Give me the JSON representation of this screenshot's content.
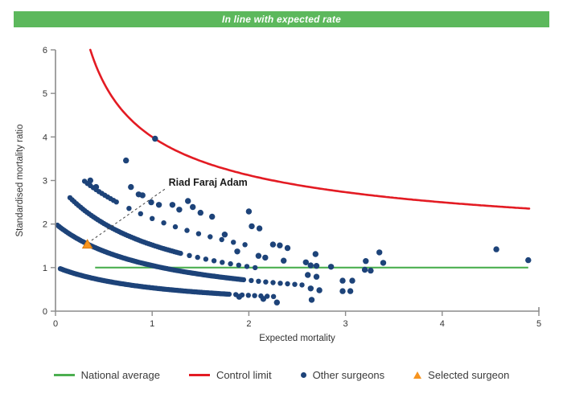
{
  "banner": {
    "text": "In line with expected rate",
    "bg_color": "#5cb85c",
    "text_color": "#ffffff"
  },
  "chart_data": {
    "type": "scatter",
    "title": "",
    "xlabel": "Expected mortality",
    "ylabel": "Standardised mortality ratio",
    "xlim": [
      0,
      5
    ],
    "ylim": [
      0,
      6
    ],
    "xticks": [
      0,
      1,
      2,
      3,
      4,
      5
    ],
    "yticks": [
      0,
      1,
      2,
      3,
      4,
      5,
      6
    ],
    "grid": false,
    "legend_position": "bottom",
    "colors": {
      "points": "#1d4379",
      "control_limit": "#e31b23",
      "national_average": "#4caf50",
      "selected": "#f7941e",
      "selected_edge": "#d97b10",
      "axis": "#8c8c8c",
      "text": "#333333"
    },
    "national_average": {
      "value": 1,
      "x_start": 0.41,
      "x_end": 4.89
    },
    "control_limit": {
      "formula": "smr = 1 + 3/sqrt(expected)",
      "base": 1,
      "k": 3,
      "x_start": 0.36,
      "x_end": 4.9
    },
    "other_surgeons": {
      "bands": [
        {
          "a": 1.13,
          "b": 1.11,
          "x_start": 0.05,
          "x_end": 2.3,
          "solid_until": 1.8,
          "solid_step": 0.018,
          "tail_step": 0.065
        },
        {
          "a": 2.19,
          "b": 1.09,
          "x_start": 0.02,
          "x_end": 2.6,
          "solid_until": 1.95,
          "solid_step": 0.018,
          "tail_step": 0.075
        },
        {
          "a": 3.1,
          "b": 1.04,
          "x_start": 0.15,
          "x_end": 2.1,
          "solid_until": 1.3,
          "solid_step": 0.022,
          "tail_step": 0.085
        },
        {
          "a": 5.19,
          "b": 1.44,
          "x_start": 0.3,
          "x_end": 2.05,
          "solid_until": 0.64,
          "solid_step": 0.03,
          "tail_step": 0.12
        }
      ],
      "points": [
        [
          0.36,
          3.0
        ],
        [
          0.42,
          2.85
        ],
        [
          0.73,
          3.46
        ],
        [
          0.78,
          2.85
        ],
        [
          0.86,
          2.68
        ],
        [
          0.9,
          2.66
        ],
        [
          0.99,
          2.5
        ],
        [
          1.03,
          3.96
        ],
        [
          1.07,
          2.44
        ],
        [
          1.21,
          2.44
        ],
        [
          1.28,
          2.33
        ],
        [
          1.37,
          2.53
        ],
        [
          1.42,
          2.39
        ],
        [
          1.5,
          2.26
        ],
        [
          1.62,
          2.17
        ],
        [
          1.75,
          1.76
        ],
        [
          1.88,
          1.37
        ],
        [
          1.9,
          0.33
        ],
        [
          2.0,
          2.29
        ],
        [
          2.03,
          1.95
        ],
        [
          2.1,
          1.27
        ],
        [
          2.11,
          1.9
        ],
        [
          2.15,
          0.28
        ],
        [
          2.17,
          1.23
        ],
        [
          2.25,
          1.53
        ],
        [
          2.29,
          0.2
        ],
        [
          2.32,
          1.51
        ],
        [
          2.36,
          1.16
        ],
        [
          2.4,
          1.45
        ],
        [
          2.59,
          1.12
        ],
        [
          2.61,
          0.83
        ],
        [
          2.64,
          0.52
        ],
        [
          2.64,
          1.05
        ],
        [
          2.65,
          0.26
        ],
        [
          2.69,
          1.31
        ],
        [
          2.7,
          1.04
        ],
        [
          2.7,
          0.79
        ],
        [
          2.73,
          0.48
        ],
        [
          2.85,
          1.02
        ],
        [
          2.97,
          0.7
        ],
        [
          2.97,
          0.46
        ],
        [
          3.05,
          0.46
        ],
        [
          3.07,
          0.7
        ],
        [
          3.2,
          0.95
        ],
        [
          3.21,
          1.15
        ],
        [
          3.26,
          0.93
        ],
        [
          3.35,
          1.35
        ],
        [
          3.39,
          1.11
        ],
        [
          4.56,
          1.42
        ],
        [
          4.89,
          1.17
        ]
      ]
    },
    "selected_surgeon": {
      "x": 0.33,
      "y": 1.52,
      "label": "Riad Faraj Adam"
    },
    "annotation": {
      "text": "Riad Faraj Adam",
      "text_anchor": [
        1.17,
        2.88
      ],
      "line_from": [
        1.13,
        2.8
      ],
      "line_to": [
        0.37,
        1.62
      ]
    }
  },
  "legend": {
    "items": [
      {
        "label": "National average",
        "marker": "line",
        "color": "#4caf50"
      },
      {
        "label": "Control limit",
        "marker": "line",
        "color": "#e31b23"
      },
      {
        "label": "Other surgeons",
        "marker": "dot",
        "color": "#1d4379"
      },
      {
        "label": "Selected surgeon",
        "marker": "triangle",
        "color": "#f7941e"
      }
    ]
  }
}
